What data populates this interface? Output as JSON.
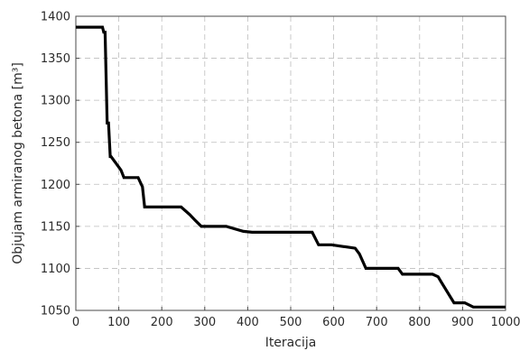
{
  "chart_data": {
    "type": "line",
    "title": "",
    "xlabel": "Iteracija",
    "ylabel": "Objujam armiranog betona [m³]",
    "xlim": [
      0,
      1000
    ],
    "ylim": [
      1050,
      1400
    ],
    "xticks": [
      0,
      100,
      200,
      300,
      400,
      500,
      600,
      700,
      800,
      900,
      1000
    ],
    "yticks": [
      1050,
      1100,
      1150,
      1200,
      1250,
      1300,
      1350,
      1400
    ],
    "grid": true,
    "line_style": "step",
    "series": [
      {
        "name": "",
        "color": "#000000",
        "x": [
          0,
          62,
          65,
          68,
          73,
          76,
          80,
          82,
          105,
          112,
          145,
          155,
          160,
          245,
          265,
          278,
          292,
          350,
          390,
          410,
          550,
          565,
          595,
          650,
          660,
          675,
          750,
          760,
          830,
          843,
          850,
          880,
          905,
          925,
          1000
        ],
        "y": [
          1387,
          1387,
          1381,
          1381,
          1273,
          1273,
          1233,
          1233,
          1217,
          1208,
          1208,
          1197,
          1173,
          1173,
          1164,
          1157,
          1150,
          1150,
          1144,
          1143,
          1143,
          1128,
          1128,
          1124,
          1117,
          1100,
          1100,
          1093,
          1093,
          1090,
          1084,
          1059,
          1059,
          1054,
          1054
        ]
      }
    ]
  }
}
